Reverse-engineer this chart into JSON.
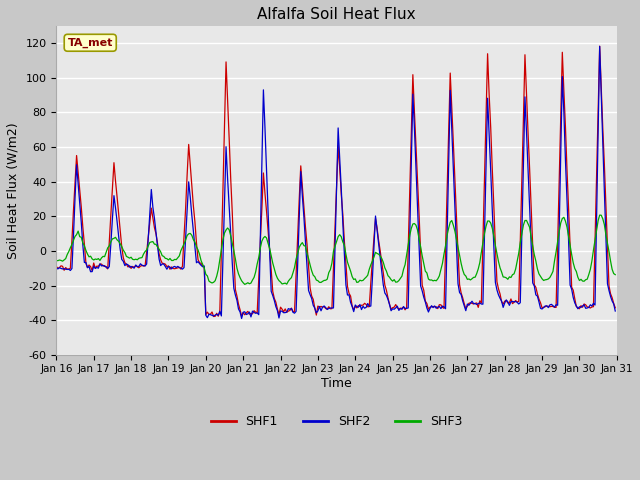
{
  "title": "Alfalfa Soil Heat Flux",
  "xlabel": "Time",
  "ylabel": "Soil Heat Flux (W/m2)",
  "ylim": [
    -60,
    130
  ],
  "yticks": [
    -60,
    -40,
    -20,
    0,
    20,
    40,
    60,
    80,
    100,
    120
  ],
  "xtick_labels": [
    "Jan 16",
    "Jan 17",
    "Jan 18",
    "Jan 19",
    "Jan 20",
    "Jan 21",
    "Jan 22",
    "Jan 23",
    "Jan 24",
    "Jan 25",
    "Jan 26",
    "Jan 27",
    "Jan 28",
    "Jan 29",
    "Jan 30",
    "Jan 31"
  ],
  "colors": {
    "SHF1": "#cc0000",
    "SHF2": "#0000cc",
    "SHF3": "#00aa00",
    "fig_bg": "#c8c8c8",
    "plot_bg": "#e8e8e8",
    "grid": "#ffffff",
    "annotation_box_bg": "#ffffcc",
    "annotation_box_edge": "#999900",
    "annotation_text": "#880000"
  },
  "annotation_text": "TA_met",
  "legend_entries": [
    "SHF1",
    "SHF2",
    "SHF3"
  ],
  "days": 15,
  "hours_per_day": 24
}
